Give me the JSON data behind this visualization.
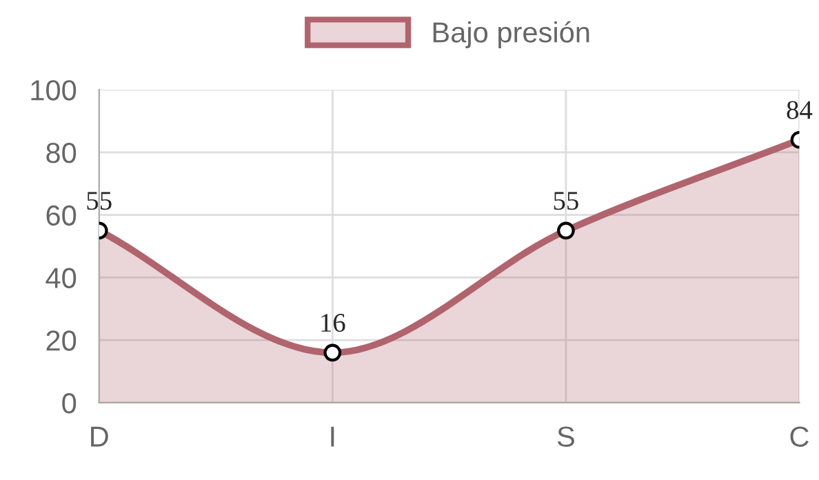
{
  "chart_data": {
    "type": "area",
    "categories": [
      "D",
      "I",
      "S",
      "C"
    ],
    "series": [
      {
        "name": "Bajo presión",
        "color": "#b0646e",
        "values": [
          55,
          16,
          55,
          84
        ]
      }
    ],
    "ylim": [
      0,
      100
    ],
    "yticks": [
      0,
      20,
      40,
      60,
      80,
      100
    ],
    "grid": true,
    "legend": "top",
    "marker": "circle",
    "data_labels": true
  }
}
